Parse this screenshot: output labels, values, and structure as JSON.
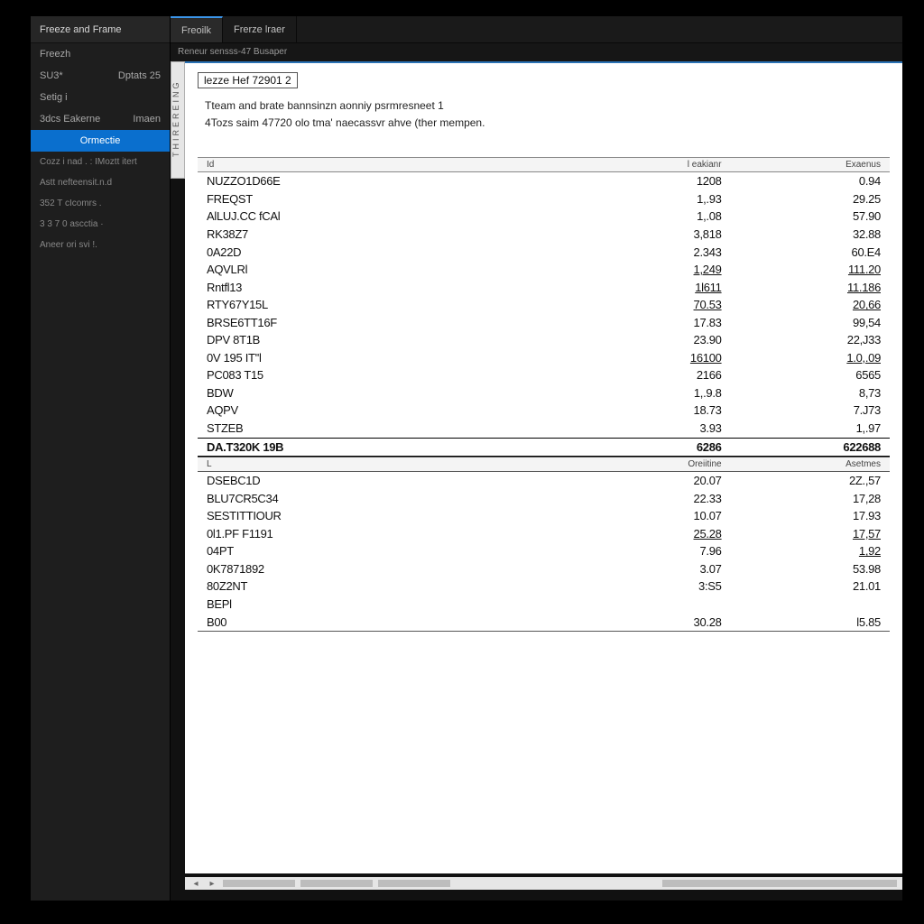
{
  "colors": {
    "bg": "#000000",
    "panel": "#1a1a1a",
    "sidebar": "#1e1e1e",
    "selected": "#0a6fce",
    "doc_bg": "#ffffff",
    "doc_accent": "#2a72b5",
    "header_row": "#f4f4f4",
    "grid": "#888888",
    "text_light": "#c8c8c8",
    "text_dark": "#111111"
  },
  "sidebar": {
    "title": "Freeze and Frame",
    "rows": [
      {
        "l": "Freezh",
        "r": ""
      },
      {
        "l": "SU3*",
        "r": "Dptats 25"
      },
      {
        "l": "Setig  i",
        "r": ""
      },
      {
        "l": "3dcs  Eakerne",
        "r": "Imaen"
      }
    ],
    "selected": "Ormectie",
    "sub": [
      "Cozz  i  nad . : IMoztt itert",
      "Astt  nefteensit.n.d",
      "352  T cIcomrs   .",
      "3 3  7 0  ascctia  ·",
      "Aneer  ori svi !."
    ]
  },
  "tabs": [
    {
      "label": "Freoilk",
      "active": true
    },
    {
      "label": "Frerze lraer",
      "active": false
    }
  ],
  "breadcrumb": "Reneur sensss-47  Busaper",
  "vtab": "THIREREING",
  "doc": {
    "ref": "lezze Hef 72901 2",
    "desc1": "Tteam and brate  bannsinzn aonniy psrmresneet  1",
    "desc2": "4Tozs saim  47720 olo  tma' naecassvr ahve (ther mempen."
  },
  "table1": {
    "headers": {
      "name": "Id",
      "c2": "l eakianr",
      "c3": "Exaenus"
    },
    "rows": [
      {
        "name": "NUZZO1D66E",
        "c2": "1208",
        "c3": "0.94"
      },
      {
        "name": "FREQST",
        "c2": "1,.93",
        "c3": "29.25"
      },
      {
        "name": "AlLUJ.CC fCAl",
        "c2": "1,.08",
        "c3": "57.90"
      },
      {
        "name": "RK38Z7",
        "c2": "3,818",
        "c3": "32.88"
      },
      {
        "name": "0A22D",
        "c2": "2.343",
        "c3": "60.E4"
      },
      {
        "name": "AQVLRl",
        "c2": "1,249",
        "c3": "111.20",
        "u": true
      },
      {
        "name": "Rntfl13",
        "c2": "1l611",
        "c3": "11.186",
        "u": true
      },
      {
        "name": "RTY67Y15L",
        "c2": "70.53",
        "c3": "20,66",
        "u": true
      },
      {
        "name": "BRSE6TT16F",
        "c2": "17.83",
        "c3": "99,54"
      },
      {
        "name": "DPV 8T1B",
        "c2": "23.90",
        "c3": "22,J33"
      },
      {
        "name": "0V 195  IT''l",
        "c2": "16100",
        "c3": "1.0,.09",
        "u": true
      },
      {
        "name": "PC083 T15",
        "c2": "2166",
        "c3": "6565"
      },
      {
        "name": "BDW",
        "c2": "1,.9.8",
        "c3": "8,73"
      },
      {
        "name": "AQPV",
        "c2": "18.73",
        "c3": "7.J73"
      },
      {
        "name": "STZEB",
        "c2": "3.93",
        "c3": "1,.97"
      }
    ],
    "total": {
      "name": "DA.T320K 19B",
      "c2": "6286",
      "c3": "622688"
    }
  },
  "table2": {
    "headers": {
      "name": "L",
      "c2": "Oreiitine",
      "c3": "Asetmes"
    },
    "rows": [
      {
        "name": "DSEBC1D",
        "c2": "20.07",
        "c3": "2Z.,57"
      },
      {
        "name": "BLU7CR5C34",
        "c2": "22.33",
        "c3": "17,28"
      },
      {
        "name": "SESTITTIOUR",
        "c2": "10.07",
        "c3": "17.93"
      },
      {
        "name": "0l1.PF F1191",
        "c2": "25.28",
        "c3": "17,57",
        "u": true
      },
      {
        "name": "04PT",
        "c2": "7.96",
        "c3": "1,92",
        "u3": true
      },
      {
        "name": "0K7871892",
        "c2": "3.07",
        "c3": "53.98"
      },
      {
        "name": "80Z2NT",
        "c2": "3:S5",
        "c3": "21.01"
      },
      {
        "name": "BEPl",
        "c2": "",
        "c3": ""
      },
      {
        "name": "B00",
        "c2": "30.28",
        "c3": "l5.85"
      }
    ]
  },
  "scrollbar": {
    "segments": [
      80,
      80,
      80,
      260
    ]
  }
}
